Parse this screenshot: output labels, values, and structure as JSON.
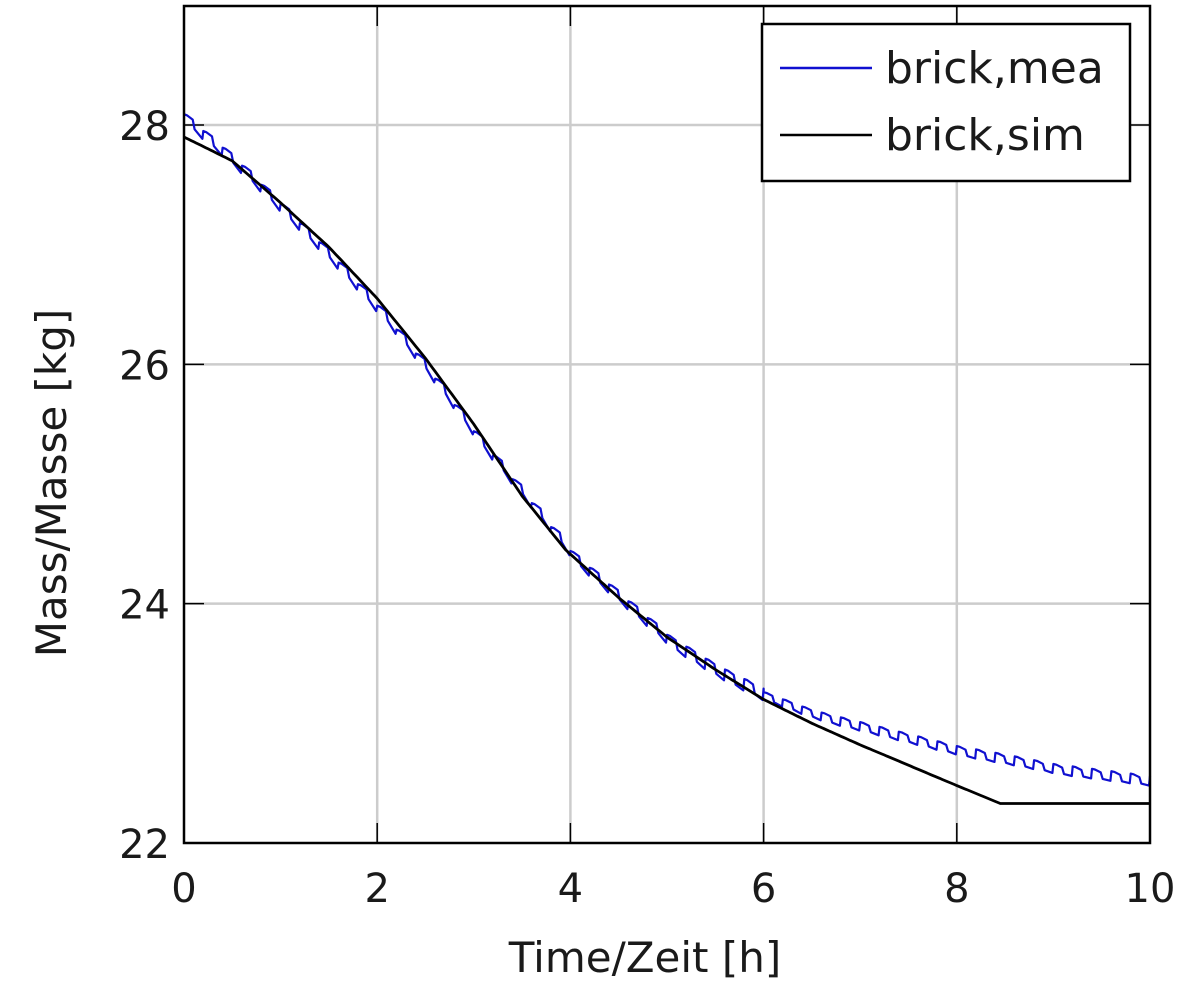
{
  "chart_data": {
    "type": "line",
    "title": "",
    "xlabel": "Time/Zeit [h]",
    "ylabel": "Mass/Masse [kg]",
    "xlim": [
      0,
      10
    ],
    "ylim": [
      22,
      29
    ],
    "xticks": [
      0,
      2,
      4,
      6,
      8,
      10
    ],
    "yticks": [
      22,
      24,
      26,
      28
    ],
    "grid": true,
    "legend_position": "upper right",
    "series": [
      {
        "name": "brick,mea",
        "color": "#1010d0",
        "style": "stepped-sawtooth",
        "x": [
          0,
          0.5,
          1,
          1.5,
          2,
          2.5,
          3,
          3.5,
          4,
          4.5,
          5,
          5.5,
          6,
          6.5,
          7,
          7.5,
          8,
          8.5,
          9,
          9.5,
          10
        ],
        "y": [
          28.0,
          27.65,
          27.25,
          26.85,
          26.4,
          25.9,
          25.35,
          24.85,
          24.35,
          24.0,
          23.65,
          23.4,
          23.2,
          23.05,
          22.95,
          22.85,
          22.75,
          22.68,
          22.6,
          22.55,
          22.5
        ]
      },
      {
        "name": "brick,sim",
        "color": "#000000",
        "style": "smooth",
        "x": [
          0,
          0.5,
          1,
          1.5,
          2,
          2.5,
          3,
          3.5,
          3.95,
          4.5,
          5,
          5.5,
          6,
          6.5,
          7,
          7.5,
          8,
          8.45,
          9,
          9.5,
          10
        ],
        "y": [
          27.9,
          27.7,
          27.35,
          26.98,
          26.55,
          26.05,
          25.5,
          24.9,
          24.45,
          24.05,
          23.72,
          23.45,
          23.2,
          23.0,
          22.82,
          22.65,
          22.48,
          22.33,
          22.33,
          22.33,
          22.33
        ]
      }
    ]
  },
  "legend": {
    "items": [
      {
        "label": "brick,mea",
        "color": "#1010d0"
      },
      {
        "label": "brick,sim",
        "color": "#000000"
      }
    ]
  },
  "axes": {
    "x_label": "Time/Zeit [h]",
    "y_label": "Mass/Masse [kg]",
    "x_tick_labels": [
      "0",
      "2",
      "4",
      "6",
      "8",
      "10"
    ],
    "y_tick_labels": [
      "22",
      "24",
      "26",
      "28"
    ]
  },
  "colors": {
    "grid": "#cccccc",
    "axis": "#000000",
    "mea": "#1010d0",
    "sim": "#000000"
  }
}
